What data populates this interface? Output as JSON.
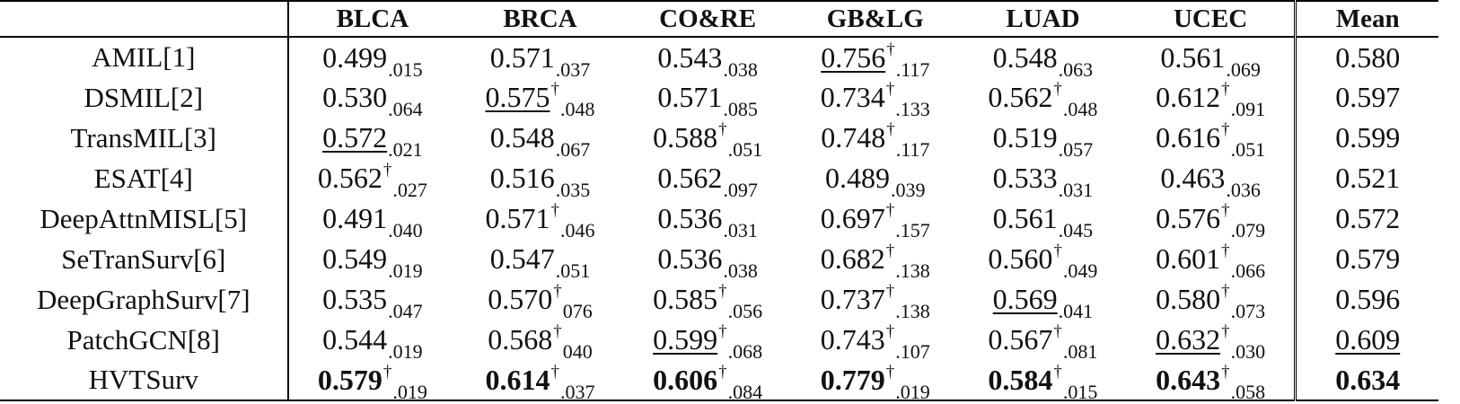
{
  "table": {
    "columns": [
      "BLCA",
      "BRCA",
      "CO&RE",
      "GB&LG",
      "LUAD",
      "UCEC",
      "Mean"
    ],
    "rows": [
      {
        "name": "AMIL[1]",
        "cells": [
          {
            "v": "0.499",
            "sd": ".015",
            "dag": false,
            "u": false,
            "b": false
          },
          {
            "v": "0.571",
            "sd": ".037",
            "dag": false,
            "u": false,
            "b": false
          },
          {
            "v": "0.543",
            "sd": ".038",
            "dag": false,
            "u": false,
            "b": false
          },
          {
            "v": "0.756",
            "sd": ".117",
            "dag": true,
            "u": true,
            "b": false
          },
          {
            "v": "0.548",
            "sd": ".063",
            "dag": false,
            "u": false,
            "b": false
          },
          {
            "v": "0.561",
            "sd": ".069",
            "dag": false,
            "u": false,
            "b": false
          }
        ],
        "mean": {
          "v": "0.580",
          "u": false,
          "b": false
        }
      },
      {
        "name": "DSMIL[2]",
        "cells": [
          {
            "v": "0.530",
            "sd": ".064",
            "dag": false,
            "u": false,
            "b": false
          },
          {
            "v": "0.575",
            "sd": ".048",
            "dag": true,
            "u": true,
            "b": false
          },
          {
            "v": "0.571",
            "sd": ".085",
            "dag": false,
            "u": false,
            "b": false
          },
          {
            "v": "0.734",
            "sd": ".133",
            "dag": true,
            "u": false,
            "b": false
          },
          {
            "v": "0.562",
            "sd": ".048",
            "dag": true,
            "u": false,
            "b": false
          },
          {
            "v": "0.612",
            "sd": ".091",
            "dag": true,
            "u": false,
            "b": false
          }
        ],
        "mean": {
          "v": "0.597",
          "u": false,
          "b": false
        }
      },
      {
        "name": "TransMIL[3]",
        "cells": [
          {
            "v": "0.572",
            "sd": ".021",
            "dag": false,
            "u": true,
            "b": false
          },
          {
            "v": "0.548",
            "sd": ".067",
            "dag": false,
            "u": false,
            "b": false
          },
          {
            "v": "0.588",
            "sd": ".051",
            "dag": true,
            "u": false,
            "b": false
          },
          {
            "v": "0.748",
            "sd": ".117",
            "dag": true,
            "u": false,
            "b": false
          },
          {
            "v": "0.519",
            "sd": ".057",
            "dag": false,
            "u": false,
            "b": false
          },
          {
            "v": "0.616",
            "sd": ".051",
            "dag": true,
            "u": false,
            "b": false
          }
        ],
        "mean": {
          "v": "0.599",
          "u": false,
          "b": false
        }
      },
      {
        "name": "ESAT[4]",
        "cells": [
          {
            "v": "0.562",
            "sd": ".027",
            "dag": true,
            "u": false,
            "b": false
          },
          {
            "v": "0.516",
            "sd": ".035",
            "dag": false,
            "u": false,
            "b": false
          },
          {
            "v": "0.562",
            "sd": ".097",
            "dag": false,
            "u": false,
            "b": false
          },
          {
            "v": "0.489",
            "sd": ".039",
            "dag": false,
            "u": false,
            "b": false
          },
          {
            "v": "0.533",
            "sd": ".031",
            "dag": false,
            "u": false,
            "b": false
          },
          {
            "v": "0.463",
            "sd": ".036",
            "dag": false,
            "u": false,
            "b": false
          }
        ],
        "mean": {
          "v": "0.521",
          "u": false,
          "b": false
        }
      },
      {
        "name": "DeepAttnMISL[5]",
        "cells": [
          {
            "v": "0.491",
            "sd": ".040",
            "dag": false,
            "u": false,
            "b": false
          },
          {
            "v": "0.571",
            "sd": ".046",
            "dag": true,
            "u": false,
            "b": false
          },
          {
            "v": "0.536",
            "sd": ".031",
            "dag": false,
            "u": false,
            "b": false
          },
          {
            "v": "0.697",
            "sd": ".157",
            "dag": true,
            "u": false,
            "b": false
          },
          {
            "v": "0.561",
            "sd": ".045",
            "dag": false,
            "u": false,
            "b": false
          },
          {
            "v": "0.576",
            "sd": ".079",
            "dag": true,
            "u": false,
            "b": false
          }
        ],
        "mean": {
          "v": "0.572",
          "u": false,
          "b": false
        }
      },
      {
        "name": "SeTranSurv[6]",
        "cells": [
          {
            "v": "0.549",
            "sd": ".019",
            "dag": false,
            "u": false,
            "b": false
          },
          {
            "v": "0.547",
            "sd": ".051",
            "dag": false,
            "u": false,
            "b": false
          },
          {
            "v": "0.536",
            "sd": ".038",
            "dag": false,
            "u": false,
            "b": false
          },
          {
            "v": "0.682",
            "sd": ".138",
            "dag": true,
            "u": false,
            "b": false
          },
          {
            "v": "0.560",
            "sd": ".049",
            "dag": true,
            "u": false,
            "b": false
          },
          {
            "v": "0.601",
            "sd": ".066",
            "dag": true,
            "u": false,
            "b": false
          }
        ],
        "mean": {
          "v": "0.579",
          "u": false,
          "b": false
        }
      },
      {
        "name": "DeepGraphSurv[7]",
        "cells": [
          {
            "v": "0.535",
            "sd": ".047",
            "dag": false,
            "u": false,
            "b": false
          },
          {
            "v": "0.570",
            "sd": "076",
            "dag": true,
            "u": false,
            "b": false
          },
          {
            "v": "0.585",
            "sd": ".056",
            "dag": true,
            "u": false,
            "b": false
          },
          {
            "v": "0.737",
            "sd": ".138",
            "dag": true,
            "u": false,
            "b": false
          },
          {
            "v": "0.569",
            "sd": ".041",
            "dag": false,
            "u": true,
            "b": false
          },
          {
            "v": "0.580",
            "sd": ".073",
            "dag": true,
            "u": false,
            "b": false
          }
        ],
        "mean": {
          "v": "0.596",
          "u": false,
          "b": false
        }
      },
      {
        "name": "PatchGCN[8]",
        "cells": [
          {
            "v": "0.544",
            "sd": ".019",
            "dag": false,
            "u": false,
            "b": false
          },
          {
            "v": "0.568",
            "sd": "040",
            "dag": true,
            "u": false,
            "b": false
          },
          {
            "v": "0.599",
            "sd": ".068",
            "dag": true,
            "u": true,
            "b": false
          },
          {
            "v": "0.743",
            "sd": ".107",
            "dag": true,
            "u": false,
            "b": false
          },
          {
            "v": "0.567",
            "sd": ".081",
            "dag": true,
            "u": false,
            "b": false
          },
          {
            "v": "0.632",
            "sd": ".030",
            "dag": true,
            "u": true,
            "b": false
          }
        ],
        "mean": {
          "v": "0.609",
          "u": true,
          "b": false
        }
      },
      {
        "name": "HVTSurv",
        "cells": [
          {
            "v": "0.579",
            "sd": ".019",
            "dag": true,
            "u": false,
            "b": true
          },
          {
            "v": "0.614",
            "sd": ".037",
            "dag": true,
            "u": false,
            "b": true
          },
          {
            "v": "0.606",
            "sd": ".084",
            "dag": true,
            "u": false,
            "b": true
          },
          {
            "v": "0.779",
            "sd": ".019",
            "dag": true,
            "u": false,
            "b": true
          },
          {
            "v": "0.584",
            "sd": ".015",
            "dag": true,
            "u": false,
            "b": true
          },
          {
            "v": "0.643",
            "sd": ".058",
            "dag": true,
            "u": false,
            "b": true
          }
        ],
        "mean": {
          "v": "0.634",
          "u": false,
          "b": true
        }
      }
    ],
    "dagger_symbol": "†"
  }
}
